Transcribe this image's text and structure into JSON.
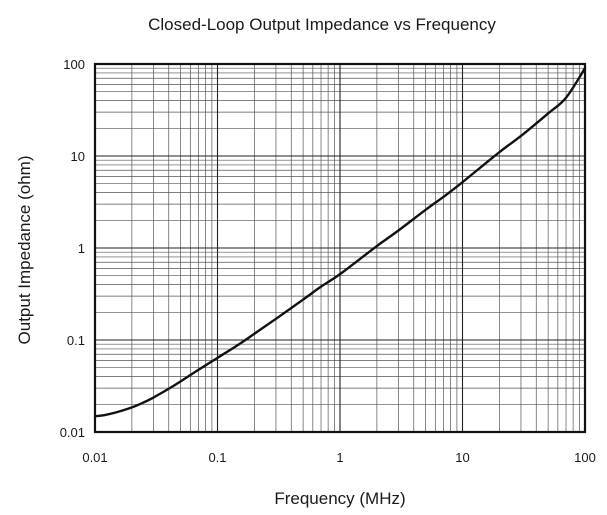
{
  "chart_data": {
    "type": "line",
    "title": "Closed-Loop Output Impedance vs Frequency",
    "xlabel": "Frequency (MHz)",
    "ylabel": "Output Impedance (ohm)",
    "xscale": "log",
    "yscale": "log",
    "xlim": [
      0.01,
      100
    ],
    "ylim": [
      0.01,
      100
    ],
    "grid": true,
    "x_ticks": [
      0.01,
      0.1,
      1,
      10,
      100
    ],
    "x_tick_labels": [
      "0.01",
      "0.1",
      "1",
      "10",
      "100"
    ],
    "y_ticks": [
      0.01,
      0.1,
      1,
      10,
      100
    ],
    "y_tick_labels": [
      "0.01",
      "0.1",
      "1",
      "10",
      "100"
    ],
    "line_color": "#111111",
    "series": [
      {
        "x": [
          0.01,
          0.012,
          0.015,
          0.02,
          0.025,
          0.03,
          0.04,
          0.05,
          0.07,
          0.1,
          0.15,
          0.2,
          0.3,
          0.5,
          0.7,
          1,
          2,
          3,
          5,
          7,
          10,
          20,
          30,
          50,
          70,
          100
        ],
        "y": [
          0.0148,
          0.0153,
          0.0164,
          0.0185,
          0.021,
          0.0237,
          0.0295,
          0.0355,
          0.0475,
          0.064,
          0.09,
          0.117,
          0.17,
          0.275,
          0.38,
          0.52,
          1.05,
          1.55,
          2.6,
          3.6,
          5.2,
          11,
          16.5,
          29,
          43,
          90
        ]
      }
    ]
  }
}
